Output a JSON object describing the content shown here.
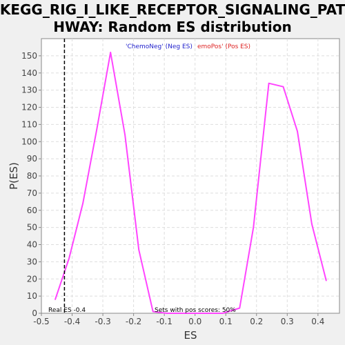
{
  "chart_data": {
    "type": "line",
    "title_lines": [
      "KEGG_RIG_I_LIKE_RECEPTOR_SIGNALING_PAT",
      "HWAY: Random ES distribution"
    ],
    "xlabel": "ES",
    "ylabel": "P(ES)",
    "xlim": [
      -0.5,
      0.47
    ],
    "ylim": [
      0,
      160
    ],
    "x_ticks": [
      -0.5,
      -0.4,
      -0.3,
      -0.2,
      -0.1,
      0.0,
      0.1,
      0.2,
      0.3,
      0.4
    ],
    "x_tick_labels": [
      "-0.5",
      "-0.4",
      "-0.3",
      "-0.2",
      "-0.1",
      "0.0",
      "0.1",
      "0.2",
      "0.3",
      "0.4"
    ],
    "y_ticks": [
      0,
      10,
      20,
      30,
      40,
      50,
      60,
      70,
      80,
      90,
      100,
      110,
      120,
      130,
      140,
      150
    ],
    "y_tick_labels": [
      "0",
      "10",
      "20",
      "30",
      "40",
      "50",
      "60",
      "70",
      "80",
      "90",
      "100",
      "110",
      "120",
      "130",
      "140",
      "150"
    ],
    "grid": true,
    "series": [
      {
        "color": "#ff44ff",
        "x": [
          -0.455,
          -0.41,
          -0.365,
          -0.32,
          -0.275,
          -0.228,
          -0.183,
          -0.137,
          -0.092,
          -0.047,
          0.0,
          0.045,
          0.09,
          0.145,
          0.19,
          0.24,
          0.287,
          0.333,
          0.38,
          0.427
        ],
        "y": [
          8,
          32,
          64,
          107,
          152,
          104,
          37,
          1,
          0,
          0,
          0,
          0,
          0,
          3,
          50,
          134,
          132,
          106,
          52,
          19
        ]
      }
    ],
    "legend": [
      {
        "text": "'ChemoNeg' (Neg ES)",
        "color": "#2222cc"
      },
      {
        "text": "emoPos' (Pos ES)",
        "color": "#dd2222"
      }
    ],
    "annotations": {
      "real_es_value": -0.425,
      "real_es_label": "Real ES -0.4",
      "pos_scores_text": "Sets with pos scores: 50%"
    }
  }
}
